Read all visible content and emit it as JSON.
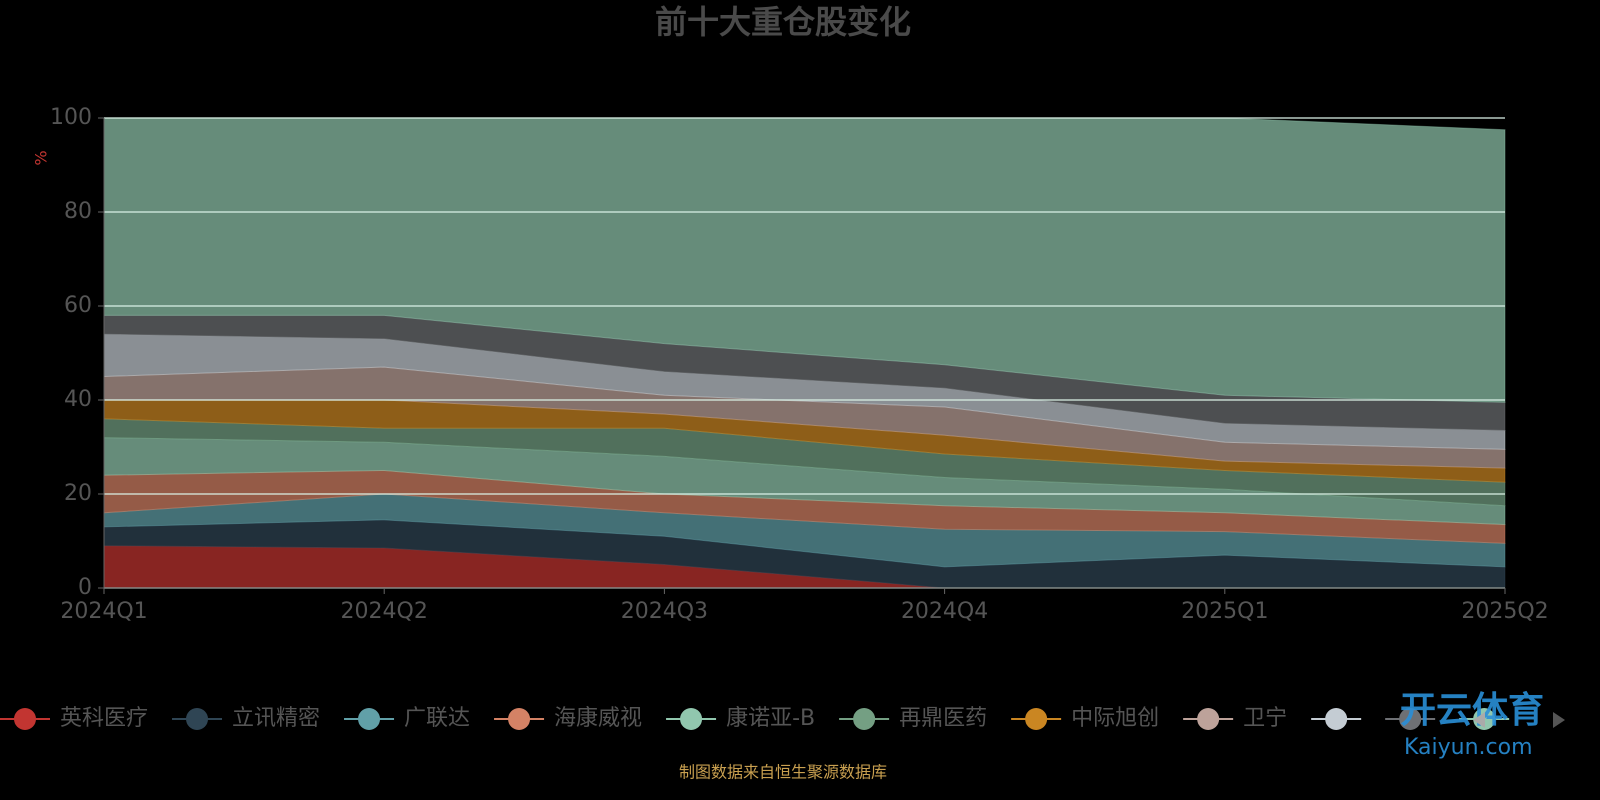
{
  "chart_data": {
    "type": "stacked_area",
    "title": "前十大重仓股变化",
    "y_label": "%",
    "categories": [
      "2024Q1",
      "2024Q2",
      "2024Q3",
      "2024Q4",
      "2025Q1",
      "2025Q2"
    ],
    "series": [
      {
        "name": "英科医疗",
        "color": "#c23531",
        "values": [
          9,
          8.5,
          5,
          0,
          0,
          0
        ]
      },
      {
        "name": "立讯精密",
        "color": "#2f4554",
        "values": [
          4,
          6,
          6,
          4.5,
          7,
          4.5
        ]
      },
      {
        "name": "广联达",
        "color": "#61a0a8",
        "values": [
          3,
          5.5,
          5,
          8,
          5,
          5
        ]
      },
      {
        "name": "海康威视",
        "color": "#d48265",
        "values": [
          8,
          5,
          4,
          5,
          4,
          4
        ]
      },
      {
        "name": "康诺亚-B",
        "color": "#91c7ae",
        "values": [
          8,
          6,
          8,
          6,
          5,
          4
        ]
      },
      {
        "name": "再鼎医药",
        "color": "#749f83",
        "values": [
          4,
          3,
          6,
          5,
          4,
          5
        ]
      },
      {
        "name": "中际旭创",
        "color": "#ca8622",
        "values": [
          4,
          6,
          3,
          4,
          2,
          3
        ]
      },
      {
        "name": "卫宁",
        "color": "#bda29a",
        "values": [
          5,
          7,
          4,
          6,
          4,
          4
        ]
      },
      {
        "color": "#c4ccd3",
        "values": [
          9,
          6,
          5,
          4,
          4,
          4
        ]
      },
      {
        "color": "#6e7074",
        "values": [
          4,
          5,
          6,
          5,
          6,
          6
        ]
      },
      {
        "color": "#91c7ae",
        "values": [
          42,
          42,
          48,
          52.5,
          59,
          58
        ]
      }
    ],
    "ylim": [
      0,
      100
    ],
    "yticks": [
      0,
      20,
      40,
      60,
      80,
      100
    ],
    "grid": true,
    "source": "制图数据来自恒生聚源数据库",
    "watermark": {
      "title": "开云体育",
      "url": "Kaiyun.com"
    }
  }
}
